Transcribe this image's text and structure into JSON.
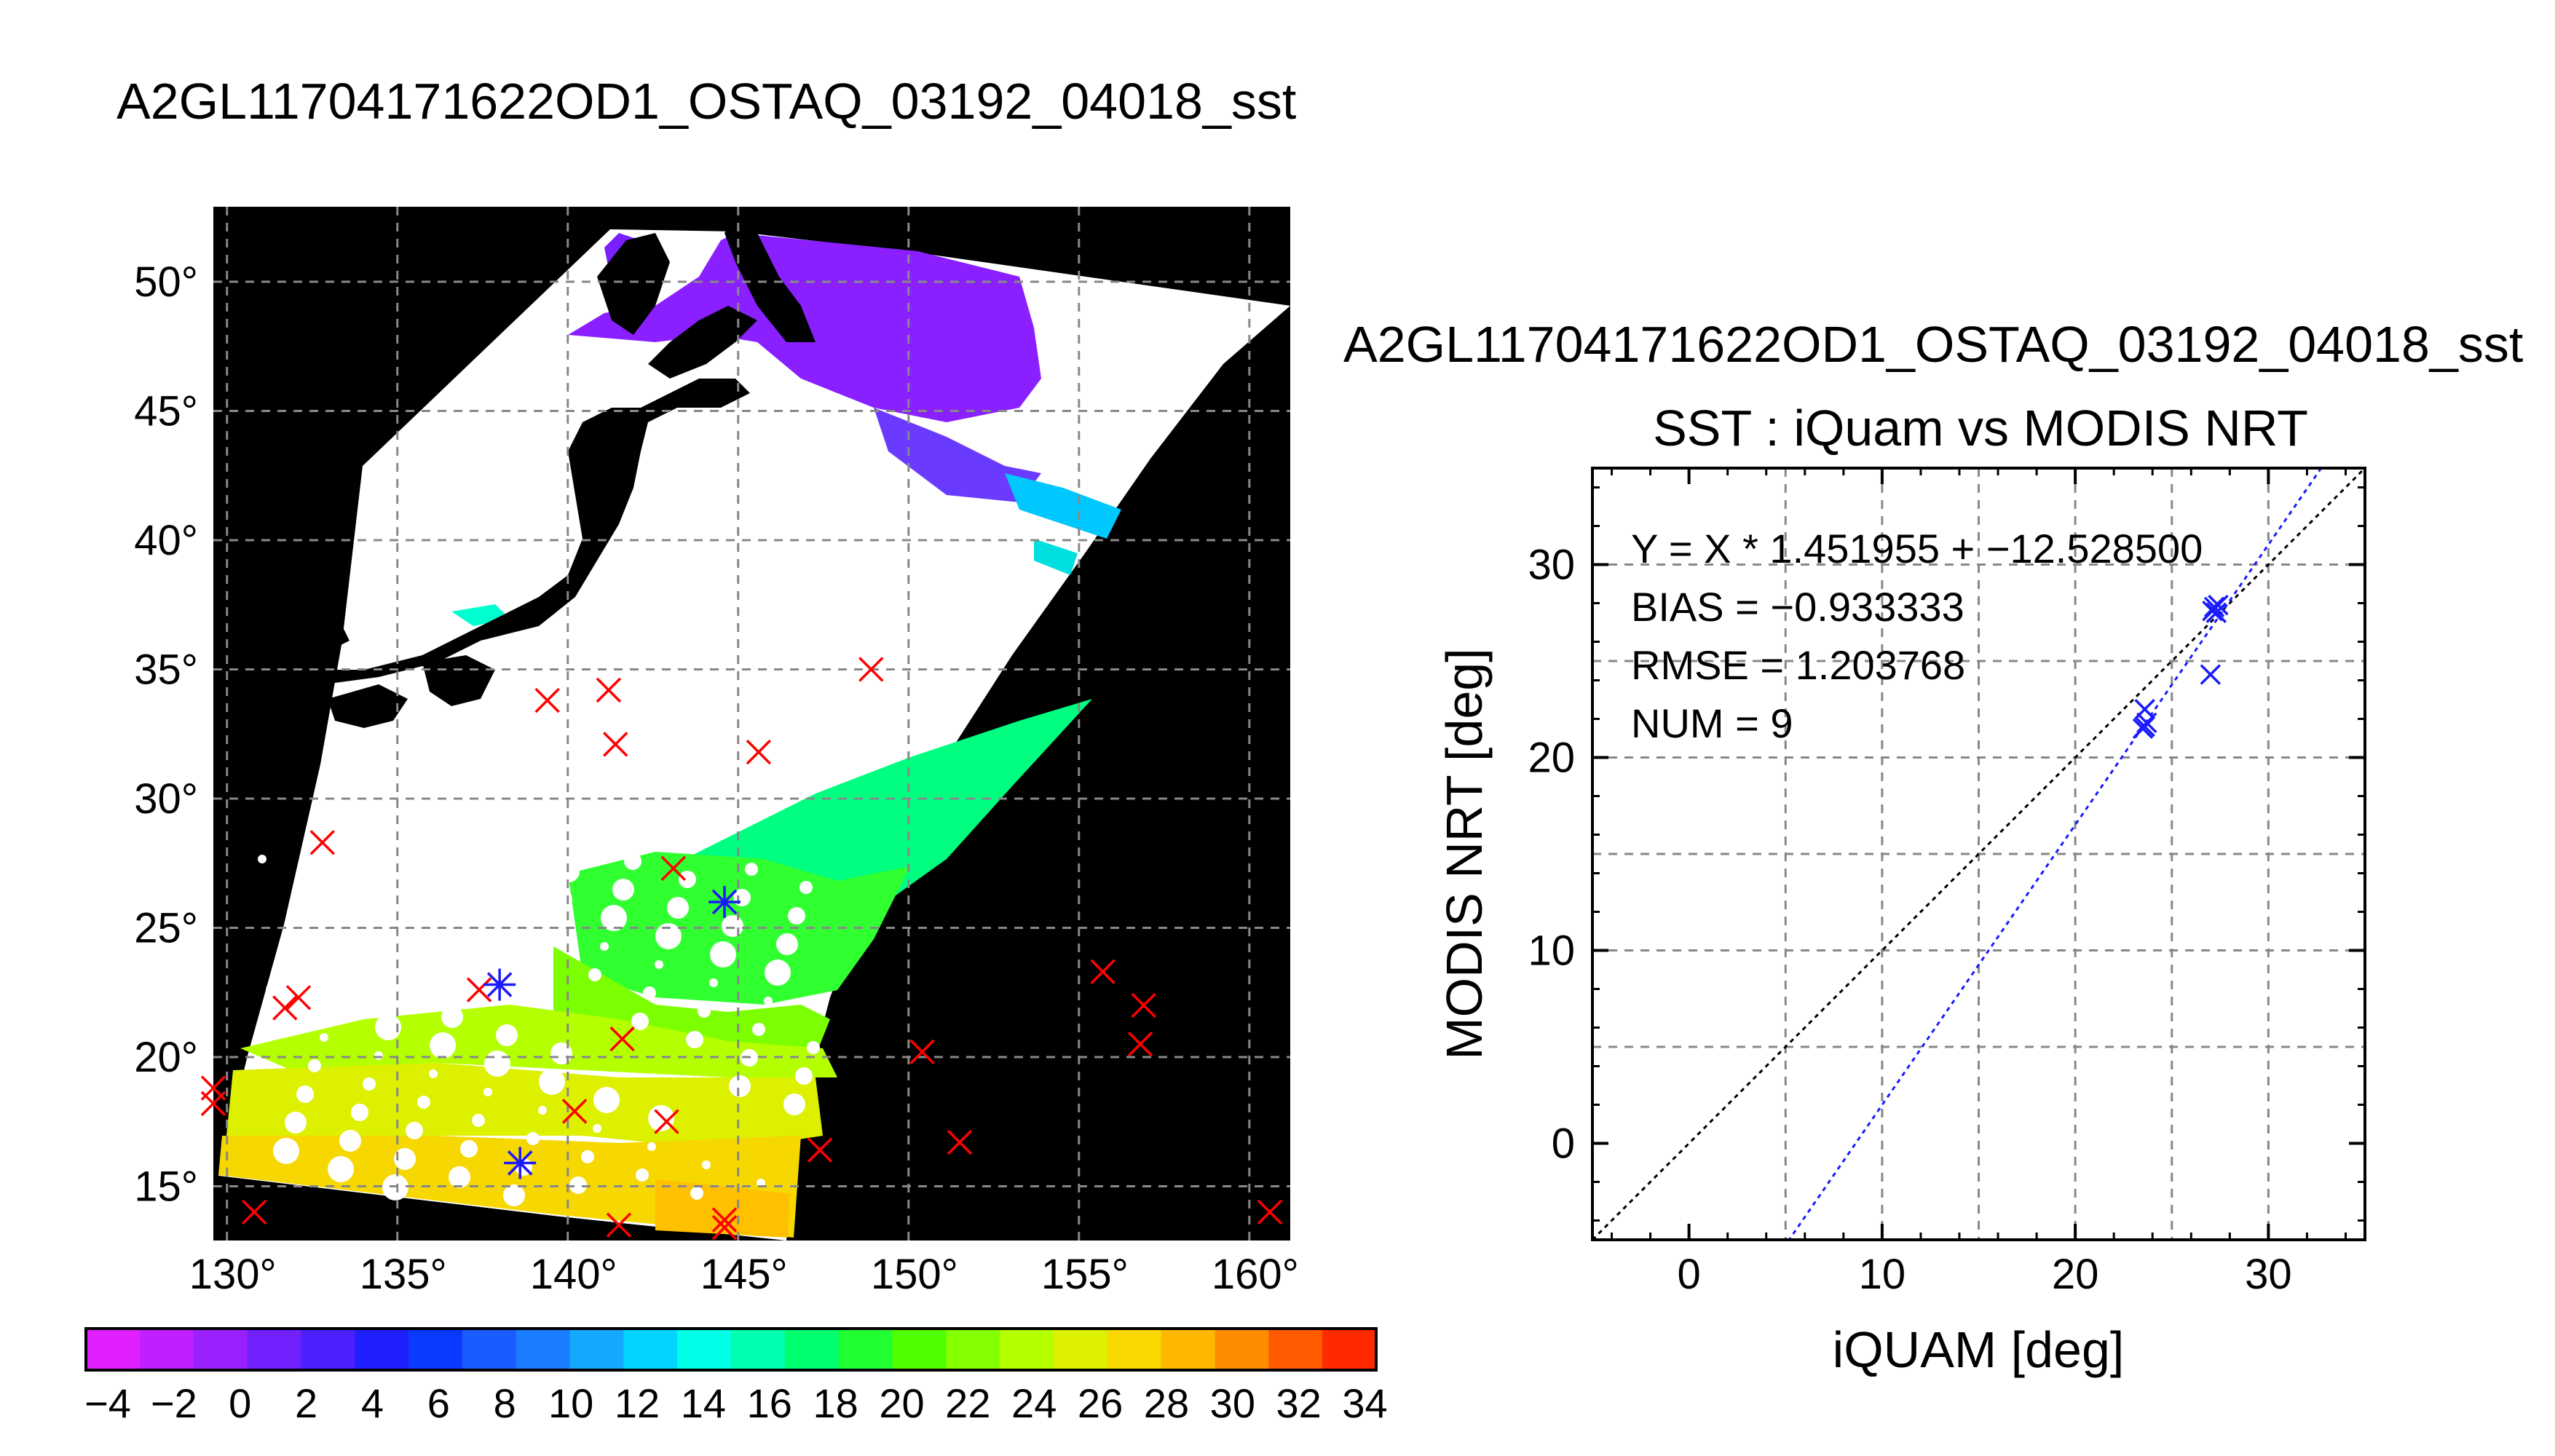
{
  "chart_data": [
    {
      "type": "map",
      "title": "A2GL11704171622OD1_OSTAQ_03192_04018_sst",
      "lon_ticks": [
        "130°",
        "135°",
        "140°",
        "145°",
        "150°",
        "155°",
        "160°"
      ],
      "lat_ticks": [
        "50°",
        "45°",
        "40°",
        "35°",
        "30°",
        "25°",
        "20°",
        "15°"
      ],
      "lon_range": [
        129.6,
        161.2
      ],
      "lat_range": [
        12.9,
        52.9
      ],
      "grid": true,
      "colorbar": {
        "tick_labels": [
          "-4",
          "-2",
          "0",
          "2",
          "4",
          "6",
          "8",
          "10",
          "12",
          "14",
          "16",
          "18",
          "20",
          "22",
          "24",
          "26",
          "28",
          "30",
          "32",
          "34"
        ],
        "range": [
          -4,
          35
        ],
        "colors": [
          "#e020ff",
          "#c020ff",
          "#9a20ff",
          "#7320ff",
          "#4c20ff",
          "#2020ff",
          "#0a3aff",
          "#1a5cff",
          "#1a7cff",
          "#14a8ff",
          "#00d4ff",
          "#00ffe6",
          "#00ffb0",
          "#00ff70",
          "#20ff30",
          "#50ff00",
          "#84ff00",
          "#b4ff00",
          "#dcf000",
          "#f8d800",
          "#ffb800",
          "#ff8c00",
          "#ff5a00",
          "#ff2a00"
        ]
      },
      "iquam_points": [
        {
          "lon": 129.6,
          "lat": 18.8
        },
        {
          "lon": 129.6,
          "lat": 18.2
        },
        {
          "lon": 130.8,
          "lat": 14.0
        },
        {
          "lon": 132.8,
          "lat": 28.3
        },
        {
          "lon": 131.7,
          "lat": 21.9
        },
        {
          "lon": 132.1,
          "lat": 22.3
        },
        {
          "lon": 137.4,
          "lat": 22.6
        },
        {
          "lon": 138.0,
          "lat": 22.8
        },
        {
          "lon": 139.4,
          "lat": 33.8
        },
        {
          "lon": 140.2,
          "lat": 17.9
        },
        {
          "lon": 141.2,
          "lat": 34.2
        },
        {
          "lon": 141.4,
          "lat": 32.1
        },
        {
          "lon": 141.6,
          "lat": 20.7
        },
        {
          "lon": 141.5,
          "lat": 13.5
        },
        {
          "lon": 142.9,
          "lat": 17.5
        },
        {
          "lon": 143.1,
          "lat": 27.3
        },
        {
          "lon": 144.6,
          "lat": 26.0
        },
        {
          "lon": 145.6,
          "lat": 31.8
        },
        {
          "lon": 144.6,
          "lat": 13.7
        },
        {
          "lon": 144.6,
          "lat": 13.4
        },
        {
          "lon": 147.4,
          "lat": 16.4
        },
        {
          "lon": 148.9,
          "lat": 35.0
        },
        {
          "lon": 150.4,
          "lat": 20.2
        },
        {
          "lon": 151.5,
          "lat": 16.7
        },
        {
          "lon": 155.7,
          "lat": 23.3
        },
        {
          "lon": 156.9,
          "lat": 22.0
        },
        {
          "lon": 156.8,
          "lat": 20.5
        },
        {
          "lon": 160.6,
          "lat": 14.0
        },
        {
          "lon": 138.6,
          "lat": 15.9
        }
      ],
      "matched_points": [
        {
          "lon": 138.0,
          "lat": 22.8
        },
        {
          "lon": 144.6,
          "lat": 26.0
        },
        {
          "lon": 138.6,
          "lat": 15.9
        }
      ]
    },
    {
      "type": "scatter",
      "header": "A2GL11704171622OD1_OSTAQ_03192_04018_sst",
      "title": "SST : iQuam vs MODIS NRT",
      "xlabel": "iQUAM [deg]",
      "ylabel": "MODIS NRT [deg]",
      "xlim": [
        -5,
        35
      ],
      "ylim": [
        -5,
        35
      ],
      "xticks": [
        0,
        10,
        20,
        30
      ],
      "yticks": [
        0,
        10,
        20,
        30
      ],
      "grid": true,
      "annotations": [
        "Y = X * 1.451955 + -12.528500",
        "BIAS = -0.933333",
        "RMSE = 1.203768",
        "NUM = 9"
      ],
      "fit": {
        "slope": 1.451955,
        "intercept": -12.5285
      },
      "points": [
        {
          "x": 27.2,
          "y": 27.8
        },
        {
          "x": 27.3,
          "y": 27.5
        },
        {
          "x": 27.1,
          "y": 27.6
        },
        {
          "x": 27.0,
          "y": 24.3
        },
        {
          "x": 23.6,
          "y": 22.5
        },
        {
          "x": 23.6,
          "y": 21.6
        },
        {
          "x": 23.7,
          "y": 21.8
        },
        {
          "x": 23.5,
          "y": 21.5
        },
        {
          "x": 27.4,
          "y": 27.9
        }
      ]
    }
  ]
}
